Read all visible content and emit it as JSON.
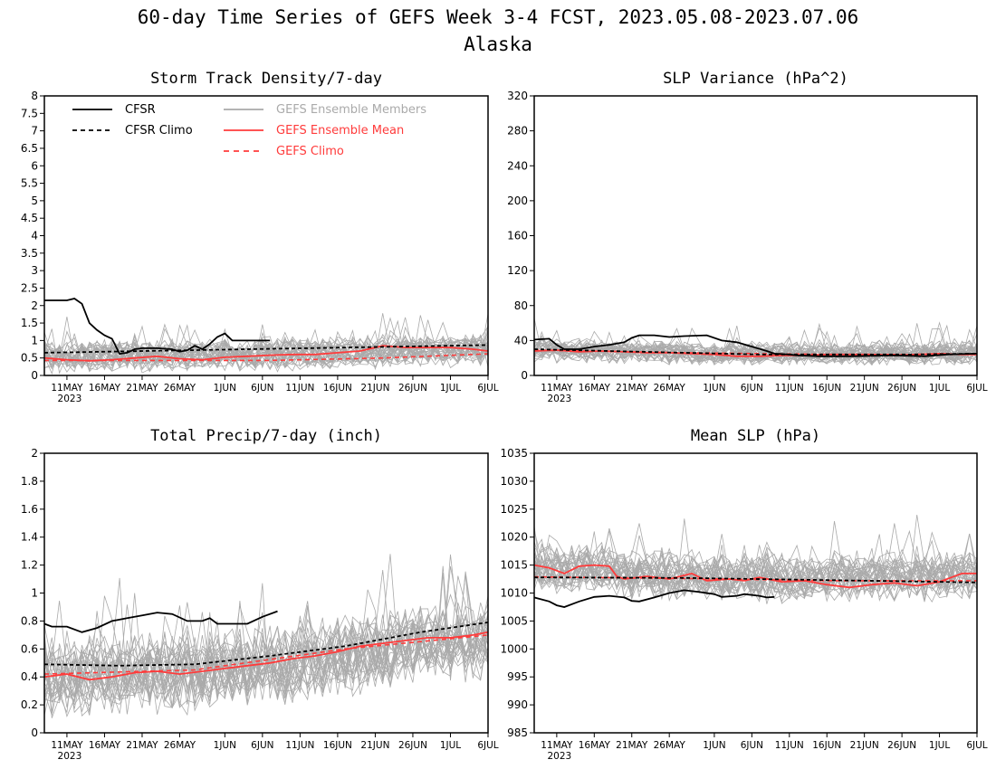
{
  "title": {
    "line1": "60-day Time Series of GEFS Week 3-4 FCST, 2023.05.08-2023.07.06",
    "line2": "Alaska"
  },
  "colors": {
    "cfsr": "#000000",
    "members": "#aaaaaa",
    "ens_mean": "#ff3b3b",
    "legend_members_text": "#aaaaaa",
    "legend_red_text": "#ff3b3b"
  },
  "x_axis": {
    "start_date": "2023-05-08",
    "end_date": "2023-07-06",
    "tick_labels": [
      "11MAY",
      "16MAY",
      "21MAY",
      "26MAY",
      "1JUN",
      "6JUN",
      "11JUN",
      "16JUN",
      "21JUN",
      "26JUN",
      "1JUL",
      "6JUL"
    ],
    "year_label": "2023"
  },
  "legend": {
    "cfsr": "CFSR",
    "cfsr_climo": "CFSR Climo",
    "members": "GEFS Ensemble Members",
    "ens_mean": "GEFS Ensemble Mean",
    "gefs_climo": "GEFS Climo"
  },
  "chart_data": [
    {
      "type": "line",
      "title": "Storm Track Density/7-day",
      "ylim": [
        0,
        8
      ],
      "yticks": [
        "0",
        "0.5",
        "1",
        "1.5",
        "2",
        "2.5",
        "3",
        "3.5",
        "4",
        "4.5",
        "5",
        "5.5",
        "6",
        "6.5",
        "7",
        "7.5",
        "8"
      ],
      "cfsr": [
        [
          0,
          2.15
        ],
        [
          3,
          2.15
        ],
        [
          4,
          2.2
        ],
        [
          5,
          2.05
        ],
        [
          6,
          1.5
        ],
        [
          7,
          1.3
        ],
        [
          8,
          1.15
        ],
        [
          9,
          1.05
        ],
        [
          10,
          0.62
        ],
        [
          11,
          0.65
        ],
        [
          12,
          0.75
        ],
        [
          13,
          0.78
        ],
        [
          15,
          0.78
        ],
        [
          17,
          0.75
        ],
        [
          18,
          0.68
        ],
        [
          19,
          0.72
        ],
        [
          20,
          0.85
        ],
        [
          21,
          0.75
        ],
        [
          22,
          0.9
        ],
        [
          23,
          1.1
        ],
        [
          24,
          1.2
        ],
        [
          25,
          1.0
        ],
        [
          26,
          1.0
        ],
        [
          30,
          1.0
        ]
      ],
      "cfsr_climo": [
        [
          0,
          0.65
        ],
        [
          59,
          0.87
        ]
      ],
      "gefs_climo": [
        [
          0,
          0.43
        ],
        [
          30,
          0.43
        ],
        [
          45,
          0.5
        ],
        [
          59,
          0.62
        ]
      ],
      "ens_mean": [
        [
          0,
          0.5
        ],
        [
          3,
          0.45
        ],
        [
          6,
          0.42
        ],
        [
          9,
          0.45
        ],
        [
          12,
          0.5
        ],
        [
          15,
          0.55
        ],
        [
          18,
          0.48
        ],
        [
          21,
          0.45
        ],
        [
          24,
          0.52
        ],
        [
          27,
          0.55
        ],
        [
          30,
          0.58
        ],
        [
          33,
          0.6
        ],
        [
          36,
          0.6
        ],
        [
          39,
          0.65
        ],
        [
          42,
          0.7
        ],
        [
          45,
          0.85
        ],
        [
          48,
          0.8
        ],
        [
          51,
          0.8
        ],
        [
          54,
          0.8
        ],
        [
          57,
          0.75
        ],
        [
          59,
          0.7
        ]
      ],
      "members": {
        "count": 31,
        "center": [
          [
            0,
            0.55
          ],
          [
            30,
            0.6
          ],
          [
            59,
            0.75
          ]
        ],
        "spread": 0.75,
        "clip": [
          0,
          4.2
        ]
      }
    },
    {
      "type": "line",
      "title": "SLP Variance (hPa^2)",
      "ylim": [
        0,
        320
      ],
      "yticks": [
        "0",
        "40",
        "80",
        "120",
        "160",
        "200",
        "240",
        "280",
        "320"
      ],
      "cfsr": [
        [
          0,
          41
        ],
        [
          2,
          42
        ],
        [
          3,
          35
        ],
        [
          4,
          30
        ],
        [
          6,
          30
        ],
        [
          8,
          33
        ],
        [
          10,
          35
        ],
        [
          12,
          38
        ],
        [
          13,
          43
        ],
        [
          14,
          46
        ],
        [
          16,
          46
        ],
        [
          18,
          44
        ],
        [
          20,
          45
        ],
        [
          23,
          46
        ],
        [
          25,
          40
        ],
        [
          27,
          38
        ],
        [
          29,
          33
        ],
        [
          31,
          28
        ],
        [
          32,
          25
        ],
        [
          34,
          24
        ],
        [
          35,
          23
        ],
        [
          38,
          22
        ],
        [
          42,
          22
        ],
        [
          48,
          23
        ],
        [
          52,
          22
        ],
        [
          55,
          24
        ],
        [
          59,
          25
        ]
      ],
      "cfsr_climo": [
        [
          0,
          30
        ],
        [
          10,
          28
        ],
        [
          20,
          26
        ],
        [
          30,
          24
        ],
        [
          40,
          24
        ],
        [
          50,
          24
        ],
        [
          59,
          25
        ]
      ],
      "gefs_climo": [
        [
          0,
          29
        ],
        [
          20,
          26
        ],
        [
          40,
          24
        ],
        [
          59,
          24
        ]
      ],
      "ens_mean": [
        [
          0,
          28
        ],
        [
          3,
          29
        ],
        [
          6,
          27
        ],
        [
          9,
          28
        ],
        [
          12,
          27
        ],
        [
          15,
          26
        ],
        [
          18,
          26
        ],
        [
          21,
          25
        ],
        [
          24,
          24
        ],
        [
          27,
          22
        ],
        [
          30,
          22
        ],
        [
          33,
          23
        ],
        [
          36,
          23
        ],
        [
          39,
          24
        ],
        [
          42,
          24
        ],
        [
          45,
          24
        ],
        [
          48,
          23
        ],
        [
          51,
          24
        ],
        [
          54,
          25
        ],
        [
          57,
          24
        ],
        [
          59,
          24
        ]
      ],
      "members": {
        "count": 31,
        "center": [
          [
            0,
            29
          ],
          [
            30,
            24
          ],
          [
            59,
            26
          ]
        ],
        "spread": 22,
        "clip": [
          12,
          66
        ]
      }
    },
    {
      "type": "line",
      "title": "Total Precip/7-day (inch)",
      "ylim": [
        0,
        2
      ],
      "yticks": [
        "0",
        "0.2",
        "0.4",
        "0.6",
        "0.8",
        "1",
        "1.2",
        "1.4",
        "1.6",
        "1.8",
        "2"
      ],
      "cfsr": [
        [
          0,
          0.78
        ],
        [
          1,
          0.76
        ],
        [
          3,
          0.76
        ],
        [
          5,
          0.72
        ],
        [
          7,
          0.75
        ],
        [
          9,
          0.8
        ],
        [
          11,
          0.82
        ],
        [
          13,
          0.84
        ],
        [
          15,
          0.86
        ],
        [
          17,
          0.85
        ],
        [
          19,
          0.8
        ],
        [
          21,
          0.8
        ],
        [
          22,
          0.82
        ],
        [
          23,
          0.78
        ],
        [
          25,
          0.78
        ],
        [
          27,
          0.78
        ],
        [
          29,
          0.83
        ],
        [
          31,
          0.87
        ]
      ],
      "cfsr_climo": [
        [
          0,
          0.49
        ],
        [
          10,
          0.48
        ],
        [
          20,
          0.49
        ],
        [
          30,
          0.55
        ],
        [
          40,
          0.62
        ],
        [
          50,
          0.72
        ],
        [
          59,
          0.79
        ]
      ],
      "gefs_climo": [
        [
          0,
          0.42
        ],
        [
          20,
          0.45
        ],
        [
          40,
          0.6
        ],
        [
          59,
          0.7
        ]
      ],
      "ens_mean": [
        [
          0,
          0.4
        ],
        [
          3,
          0.42
        ],
        [
          6,
          0.38
        ],
        [
          9,
          0.4
        ],
        [
          12,
          0.43
        ],
        [
          15,
          0.44
        ],
        [
          18,
          0.42
        ],
        [
          21,
          0.44
        ],
        [
          24,
          0.46
        ],
        [
          27,
          0.48
        ],
        [
          30,
          0.5
        ],
        [
          33,
          0.53
        ],
        [
          36,
          0.55
        ],
        [
          39,
          0.58
        ],
        [
          42,
          0.62
        ],
        [
          45,
          0.64
        ],
        [
          48,
          0.66
        ],
        [
          51,
          0.68
        ],
        [
          54,
          0.68
        ],
        [
          57,
          0.7
        ],
        [
          59,
          0.72
        ]
      ],
      "members": {
        "count": 31,
        "center": [
          [
            0,
            0.38
          ],
          [
            30,
            0.48
          ],
          [
            59,
            0.68
          ]
        ],
        "spread": 0.45,
        "clip": [
          0.1,
          1.35
        ]
      }
    },
    {
      "type": "line",
      "title": "Mean SLP (hPa)",
      "ylim": [
        985,
        1035
      ],
      "yticks": [
        "985",
        "990",
        "995",
        "1000",
        "1005",
        "1010",
        "1015",
        "1020",
        "1025",
        "1030",
        "1035"
      ],
      "cfsr": [
        [
          0,
          1009.2
        ],
        [
          2,
          1008.5
        ],
        [
          3,
          1007.8
        ],
        [
          4,
          1007.5
        ],
        [
          6,
          1008.5
        ],
        [
          8,
          1009.3
        ],
        [
          10,
          1009.5
        ],
        [
          12,
          1009.2
        ],
        [
          13,
          1008.6
        ],
        [
          14,
          1008.5
        ],
        [
          16,
          1009.2
        ],
        [
          18,
          1010
        ],
        [
          20,
          1010.5
        ],
        [
          22,
          1010.2
        ],
        [
          24,
          1009.8
        ],
        [
          25,
          1009.3
        ],
        [
          27,
          1009.5
        ],
        [
          28,
          1009.8
        ],
        [
          30,
          1009.5
        ],
        [
          31,
          1009.2
        ],
        [
          32,
          1009.3
        ]
      ],
      "cfsr_climo": [
        [
          0,
          1012.8
        ],
        [
          20,
          1012.7
        ],
        [
          40,
          1012.3
        ],
        [
          59,
          1011.9
        ]
      ],
      "gefs_climo": [
        [
          0,
          1012.9
        ],
        [
          20,
          1012.6
        ],
        [
          40,
          1012.2
        ],
        [
          59,
          1012.2
        ]
      ],
      "ens_mean": [
        [
          0,
          1015
        ],
        [
          2,
          1014.5
        ],
        [
          4,
          1013.5
        ],
        [
          6,
          1014.8
        ],
        [
          8,
          1015
        ],
        [
          10,
          1014.8
        ],
        [
          11,
          1013
        ],
        [
          12,
          1012.5
        ],
        [
          15,
          1013
        ],
        [
          18,
          1012.5
        ],
        [
          21,
          1013.5
        ],
        [
          23,
          1012.2
        ],
        [
          26,
          1012.5
        ],
        [
          28,
          1012.2
        ],
        [
          30,
          1012.8
        ],
        [
          33,
          1012
        ],
        [
          36,
          1012.2
        ],
        [
          39,
          1011.5
        ],
        [
          42,
          1011
        ],
        [
          45,
          1011.5
        ],
        [
          48,
          1011.8
        ],
        [
          51,
          1011.3
        ],
        [
          54,
          1012
        ],
        [
          57,
          1013.5
        ],
        [
          59,
          1013.5
        ]
      ],
      "members": {
        "count": 31,
        "center": [
          [
            0,
            1014.5
          ],
          [
            30,
            1012.5
          ],
          [
            59,
            1013
          ]
        ],
        "spread": 7,
        "clip": [
          1003,
          1024
        ]
      }
    }
  ]
}
